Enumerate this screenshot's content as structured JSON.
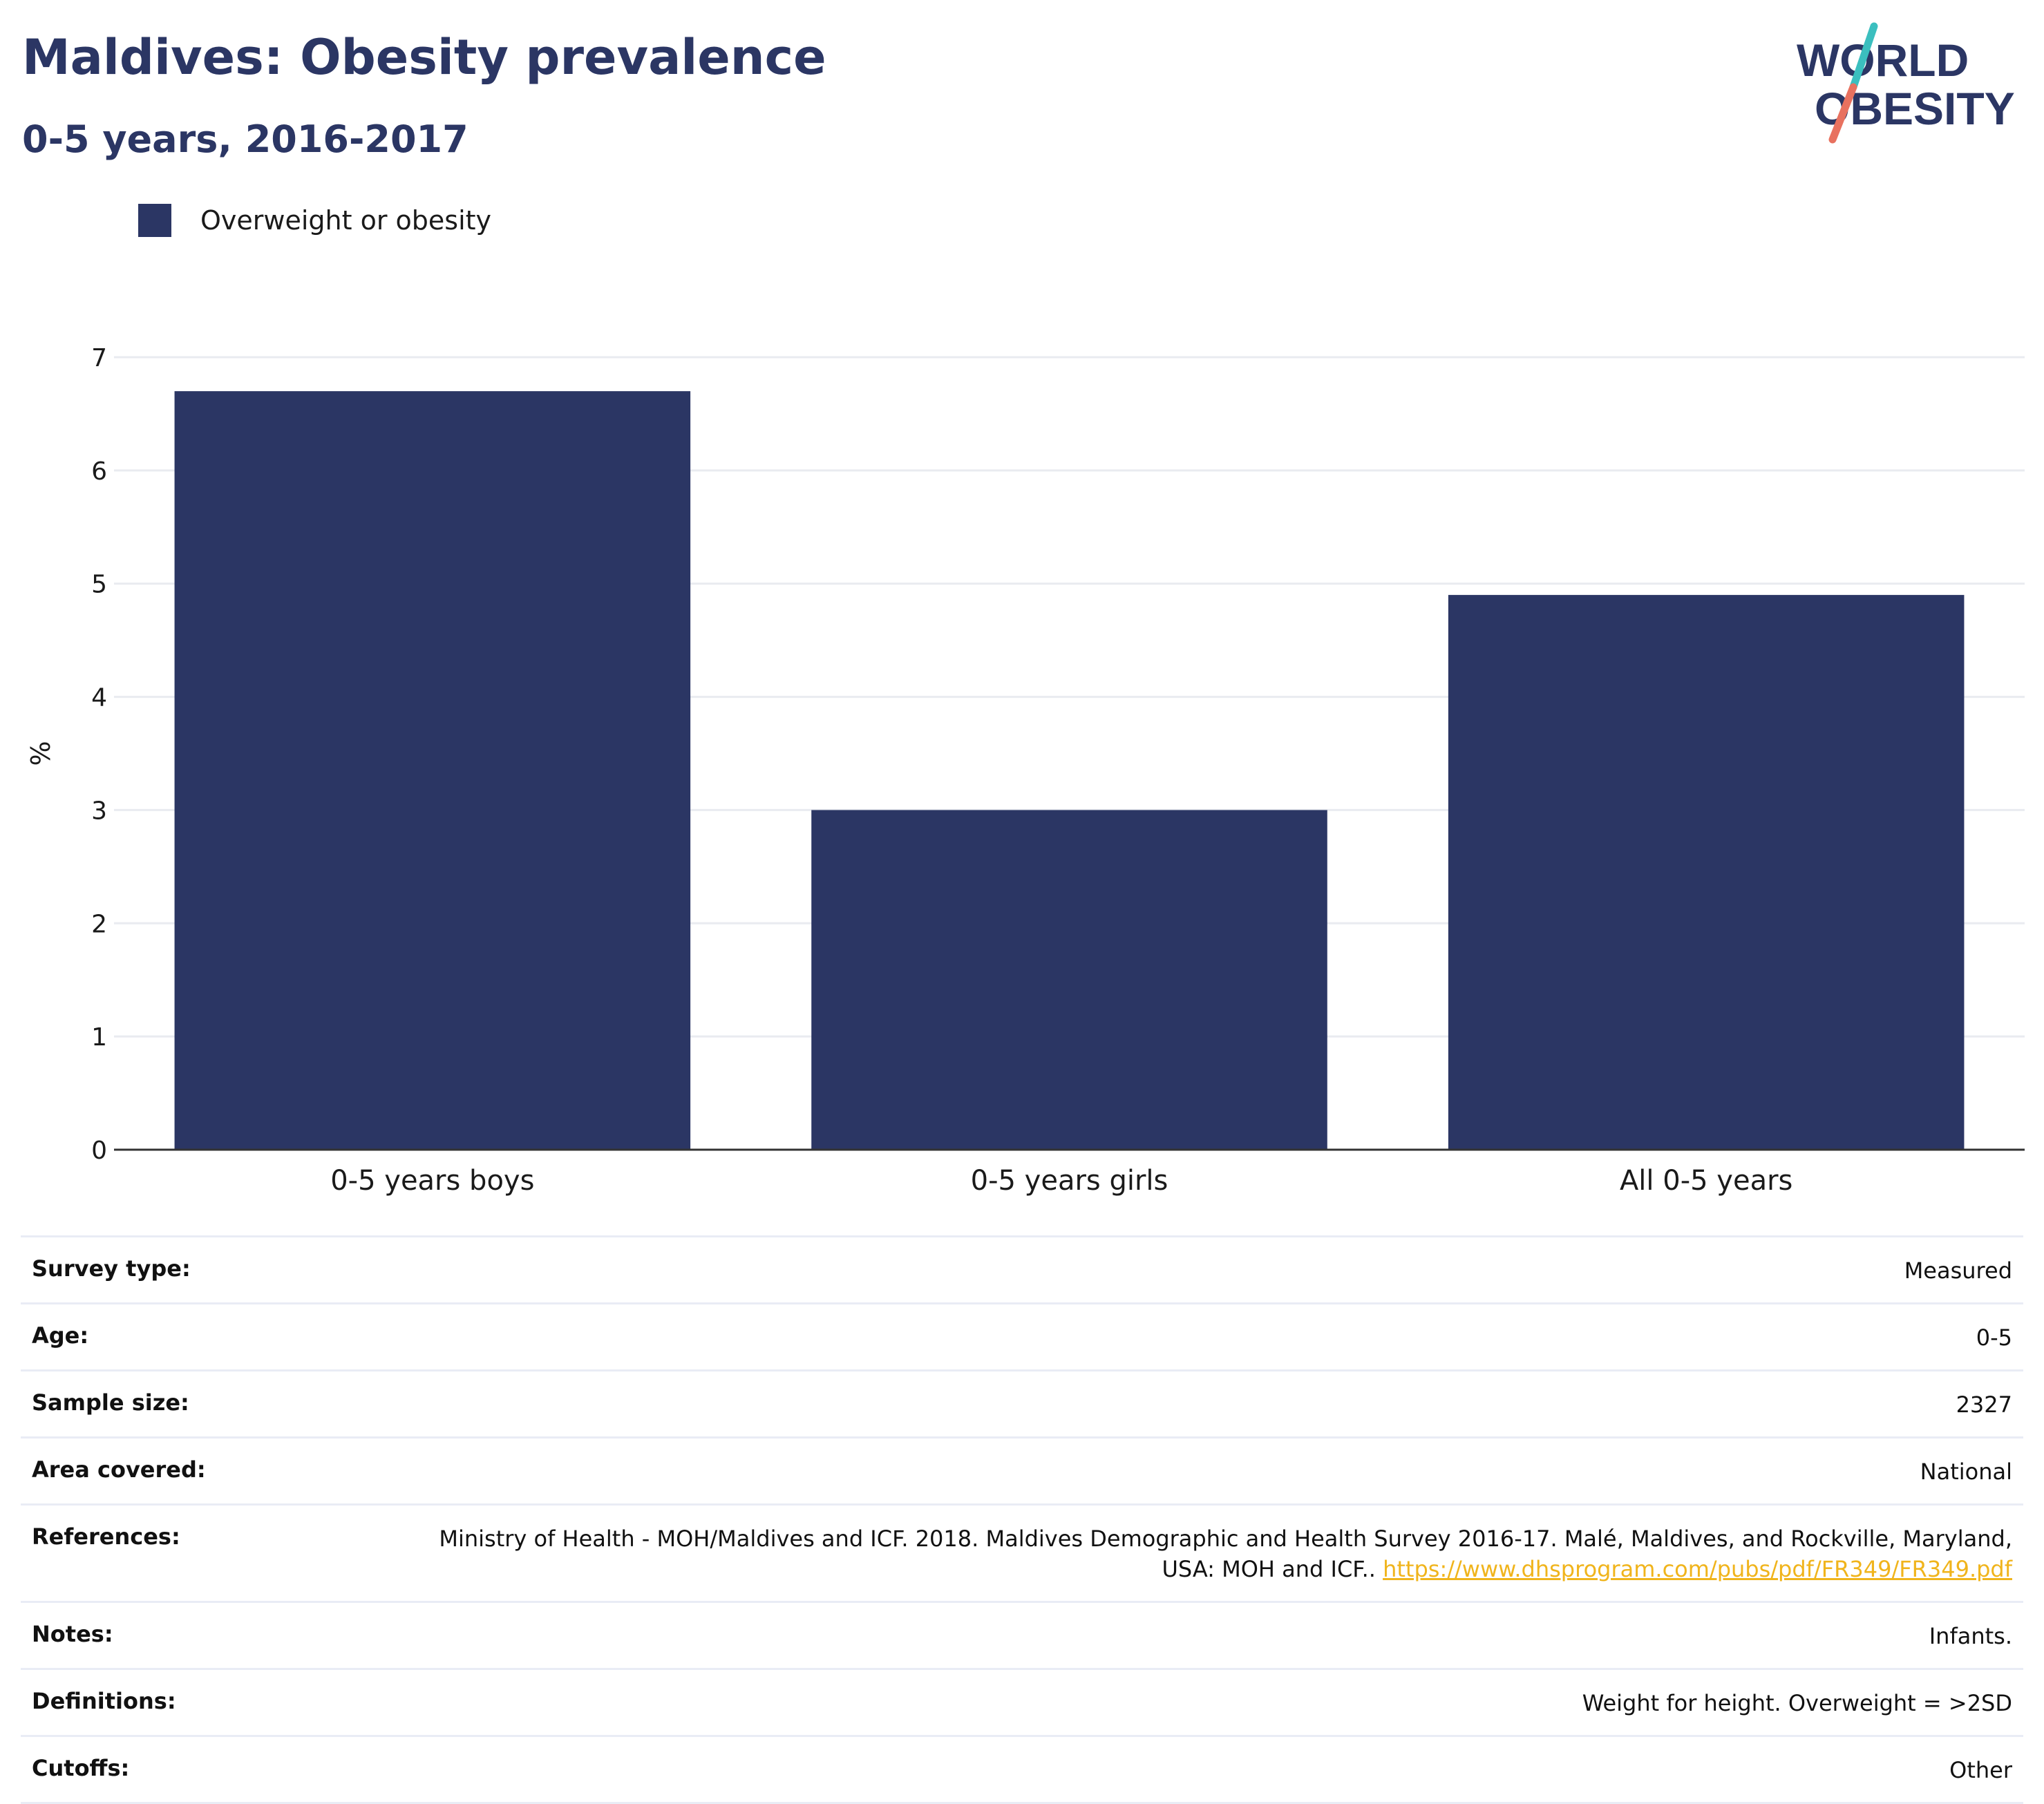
{
  "header": {
    "title": "Maldives: Obesity prevalence",
    "subtitle": "0-5 years, 2016-2017"
  },
  "logo": {
    "line1": "WORLD",
    "line2": "OBESITY",
    "colors": {
      "text": "#2b3664",
      "slash_top": "#3bbfbf",
      "slash_bottom": "#e8715f"
    }
  },
  "legend": {
    "label": "Overweight or obesity",
    "color": "#2b3664"
  },
  "chart_data": {
    "type": "bar",
    "categories": [
      "0-5 years boys",
      "0-5 years girls",
      "All 0-5 years"
    ],
    "series": [
      {
        "name": "Overweight or obesity",
        "values": [
          6.7,
          3.0,
          4.9
        ],
        "color": "#2b3664"
      }
    ],
    "title": "Maldives: Obesity prevalence",
    "subtitle": "0-5 years, 2016-2017",
    "xlabel": "",
    "ylabel": "%",
    "ylim": [
      0,
      7
    ],
    "yticks": [
      "0",
      "1",
      "2",
      "3",
      "4",
      "5",
      "6",
      "7"
    ],
    "grid": true,
    "legend_position": "top-left"
  },
  "info": {
    "rows": [
      {
        "label": "Survey type:",
        "value": "Measured"
      },
      {
        "label": "Age:",
        "value": "0-5"
      },
      {
        "label": "Sample size:",
        "value": "2327"
      },
      {
        "label": "Area covered:",
        "value": "National"
      },
      {
        "label": "References:",
        "value": "Ministry of Health - MOH/Maldives and ICF. 2018. Maldives Demographic and Health Survey 2016-17. Malé, Maldives, and Rockville, Maryland, USA: MOH and ICF..",
        "link": "https://www.dhsprogram.com/pubs/pdf/FR349/FR349.pdf"
      },
      {
        "label": "Notes:",
        "value": "Infants."
      },
      {
        "label": "Definitions:",
        "value": "Weight for height. Overweight = >2SD"
      },
      {
        "label": "Cutoffs:",
        "value": "Other"
      }
    ]
  }
}
